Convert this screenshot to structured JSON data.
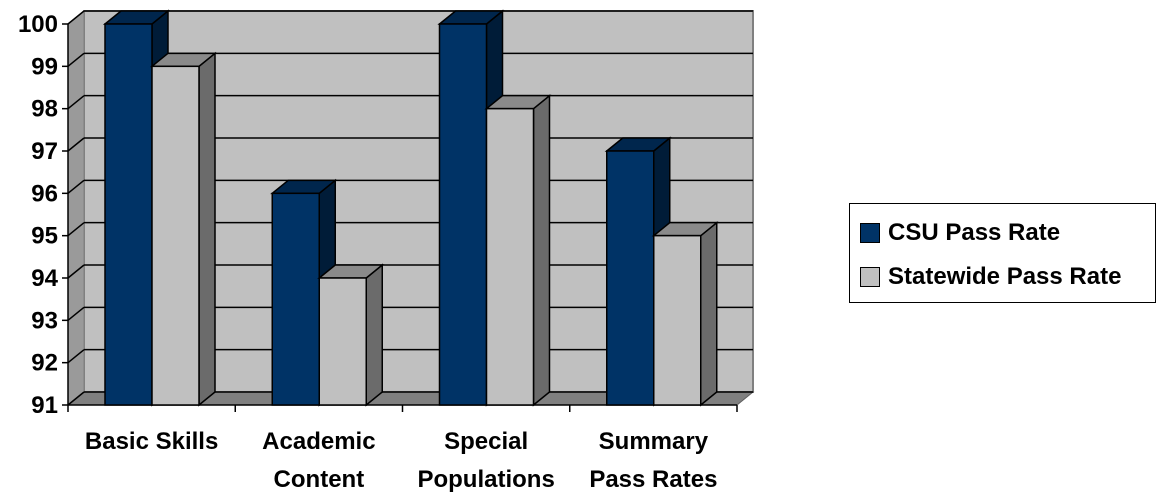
{
  "chart_data": {
    "type": "bar",
    "categories": [
      [
        "Basic Skills"
      ],
      [
        "Academic",
        "Content"
      ],
      [
        "Special",
        "Populations"
      ],
      [
        "Summary",
        "Pass Rates"
      ]
    ],
    "series": [
      {
        "name": "CSU Pass Rate",
        "values": [
          100,
          96,
          100,
          97
        ],
        "color": "#003366"
      },
      {
        "name": "Statewide Pass Rate",
        "values": [
          99,
          94,
          98,
          95
        ],
        "color": "#C0C0C0"
      }
    ],
    "ylim": [
      91,
      100
    ],
    "yticks": [
      91,
      92,
      93,
      94,
      95,
      96,
      97,
      98,
      99,
      100
    ],
    "grid": true,
    "background_color": "#C0C0C0",
    "legend_position": "right",
    "style": "3d-clustered"
  }
}
